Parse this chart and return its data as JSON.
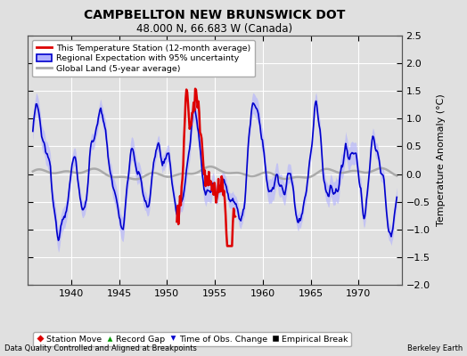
{
  "title": "CAMPBELLTON NEW BRUNSWICK DOT",
  "subtitle": "48.000 N, 66.683 W (Canada)",
  "ylabel": "Temperature Anomaly (°C)",
  "xlabel_left": "Data Quality Controlled and Aligned at Breakpoints",
  "xlabel_right": "Berkeley Earth",
  "xlim": [
    1935.5,
    1974.5
  ],
  "ylim": [
    -2.0,
    2.5
  ],
  "yticks": [
    -2.0,
    -1.5,
    -1.0,
    -0.5,
    0.0,
    0.5,
    1.0,
    1.5,
    2.0,
    2.5
  ],
  "xticks": [
    1940,
    1945,
    1950,
    1955,
    1960,
    1965,
    1970
  ],
  "bg_color": "#e0e0e0",
  "grid_color": "#ffffff",
  "red_line_color": "#dd0000",
  "blue_line_color": "#0000cc",
  "blue_fill_color": "#b0b0ff",
  "gray_line_color": "#aaaaaa",
  "legend1_items": [
    {
      "label": "This Temperature Station (12-month average)",
      "color": "#dd0000"
    },
    {
      "label": "Regional Expectation with 95% uncertainty",
      "color": "#0000cc",
      "fill": "#b0b0ff"
    },
    {
      "label": "Global Land (5-year average)",
      "color": "#aaaaaa"
    }
  ],
  "legend2_items": [
    {
      "label": "Station Move",
      "marker": "D",
      "color": "#dd0000"
    },
    {
      "label": "Record Gap",
      "marker": "^",
      "color": "#009900"
    },
    {
      "label": "Time of Obs. Change",
      "marker": "v",
      "color": "#0000cc"
    },
    {
      "label": "Empirical Break",
      "marker": "s",
      "color": "#000000"
    }
  ],
  "red_start": 1951.0,
  "red_end": 1957.2,
  "x_start": 1936.0,
  "x_end": 1974.0,
  "seed": 12345
}
